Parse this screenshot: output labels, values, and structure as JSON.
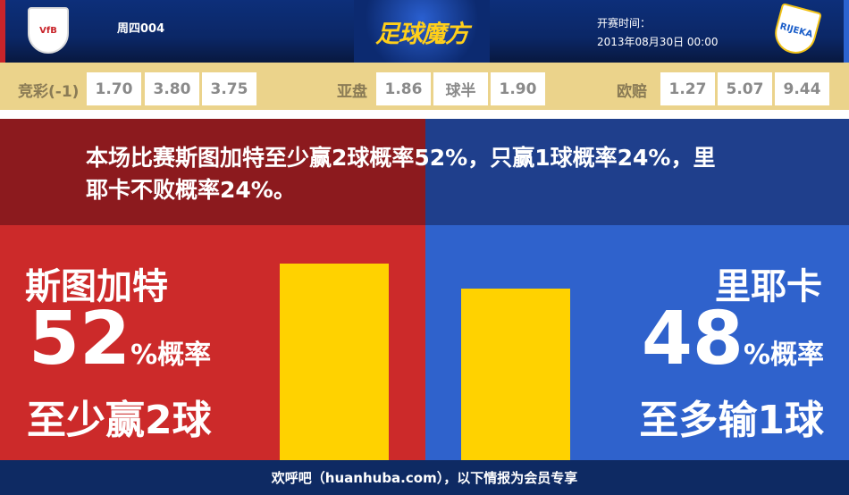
{
  "header": {
    "match_no": "周四004",
    "logo": "足球魔方",
    "kickoff_label": "开赛时间：",
    "kickoff_time": "2013年08月30日 00:00",
    "home_crest": "VfB",
    "away_crest": "RIJEKA"
  },
  "odds": {
    "jingcai": {
      "label": "竞彩(-1)",
      "values": [
        "1.70",
        "3.80",
        "3.75"
      ]
    },
    "asian": {
      "label": "亚盘",
      "values": [
        "1.86",
        "球半",
        "1.90"
      ]
    },
    "euro": {
      "label": "欧赔",
      "values": [
        "1.27",
        "5.07",
        "9.44"
      ]
    }
  },
  "banner": {
    "text": "本场比赛斯图加特至少赢2球概率52%，只赢1球概率24%，里耶卡不败概率24%。"
  },
  "home": {
    "team": "斯图加特",
    "percent": "52",
    "unit": "%概率",
    "outcome": "至少赢2球",
    "bar_value": 52
  },
  "away": {
    "team": "里耶卡",
    "percent": "48",
    "unit": "%概率",
    "outcome": "至多输1球",
    "bar_value": 48
  },
  "colors": {
    "home": "#cc2a2a",
    "away": "#2f62cc",
    "bar": "#ffd200"
  },
  "footer": {
    "text": "欢呼吧（huanhuba.com），以下情报为会员专享"
  }
}
